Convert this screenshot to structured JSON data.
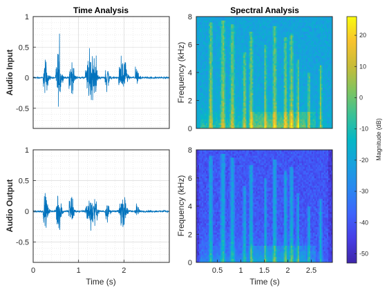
{
  "chart_data": [
    {
      "id": "time_input",
      "type": "line",
      "title": "Time Analysis",
      "ylabel": "Audio Input",
      "xlabel": "",
      "xlim": [
        0,
        3.0
      ],
      "ylim": [
        -0.83,
        1
      ],
      "yticks": [
        -0.5,
        0,
        0.5,
        1
      ],
      "ytick_labels": [
        "-0.5",
        "0",
        "0.5",
        "1"
      ],
      "grid": true,
      "color": "#0072BD",
      "bursts": [
        [
          0.22,
          0.33,
          0.42
        ],
        [
          0.5,
          0.62,
          0.6
        ],
        [
          0.78,
          0.9,
          0.42
        ],
        [
          1.15,
          1.42,
          0.5
        ],
        [
          1.58,
          1.68,
          0.32
        ],
        [
          1.88,
          2.08,
          0.42
        ],
        [
          2.25,
          2.33,
          0.22
        ]
      ]
    },
    {
      "id": "time_output",
      "type": "line",
      "title": "",
      "ylabel": "Audio Output",
      "xlabel": "Time (s)",
      "xlim": [
        0,
        3.0
      ],
      "ylim": [
        -0.83,
        1
      ],
      "xticks": [
        0,
        1,
        2
      ],
      "xtick_labels": [
        "0",
        "1",
        "2"
      ],
      "yticks": [
        -0.5,
        0,
        0.5,
        1
      ],
      "ytick_labels": [
        "-0.5",
        "0",
        "0.5",
        "1"
      ],
      "grid": true,
      "color": "#0072BD",
      "bursts": [
        [
          0.22,
          0.33,
          0.35
        ],
        [
          0.5,
          0.62,
          0.5
        ],
        [
          0.78,
          0.9,
          0.4
        ],
        [
          1.15,
          1.42,
          0.35
        ],
        [
          1.58,
          1.68,
          0.22
        ],
        [
          1.88,
          2.08,
          0.32
        ],
        [
          2.25,
          2.33,
          0.18
        ]
      ]
    },
    {
      "id": "spec_input",
      "type": "heatmap",
      "title": "Spectral Analysis",
      "ylabel": "Frequency (kHz)",
      "xlabel": "",
      "xlim": [
        0.05,
        2.95
      ],
      "ylim": [
        0,
        8
      ],
      "yticks": [
        0,
        2,
        4,
        6,
        8
      ],
      "ytick_labels": [
        "0",
        "2",
        "4",
        "6",
        "8"
      ],
      "noise_floor_db": -20
    },
    {
      "id": "spec_output",
      "type": "heatmap",
      "title": "",
      "ylabel": "Frequency (kHz)",
      "xlabel": "Time (s)",
      "xlim": [
        0.05,
        2.95
      ],
      "ylim": [
        0,
        8
      ],
      "xticks": [
        0.5,
        1,
        1.5,
        2,
        2.5
      ],
      "xtick_labels": [
        "0.5",
        "1",
        "1.5",
        "2",
        "2.5"
      ],
      "yticks": [
        0,
        2,
        4,
        6,
        8
      ],
      "ytick_labels": [
        "0",
        "2",
        "4",
        "6",
        "8"
      ],
      "noise_floor_db": -40
    }
  ],
  "colorbar": {
    "label": "Magnitude (dB)",
    "clim": [
      -53,
      26
    ],
    "ticks": [
      20,
      10,
      0,
      -10,
      -20,
      -30,
      -40,
      -50
    ],
    "tick_labels": [
      "20",
      "10",
      "0",
      "-10",
      "-20",
      "-30",
      "-40",
      "-50"
    ],
    "colormap": "parula"
  },
  "spectral_events": [
    [
      0.36,
      0.03,
      7.6
    ],
    [
      0.62,
      0.035,
      7.8
    ],
    [
      0.82,
      0.03,
      7.5
    ],
    [
      1.08,
      0.025,
      5.5
    ],
    [
      1.22,
      0.03,
      7.0
    ],
    [
      1.52,
      0.02,
      6.0
    ],
    [
      1.72,
      0.03,
      7.3
    ],
    [
      1.95,
      0.025,
      6.5
    ],
    [
      2.08,
      0.03,
      6.8
    ],
    [
      2.22,
      0.02,
      5.0
    ],
    [
      2.45,
      0.02,
      4.0
    ],
    [
      2.7,
      0.02,
      4.5
    ]
  ]
}
